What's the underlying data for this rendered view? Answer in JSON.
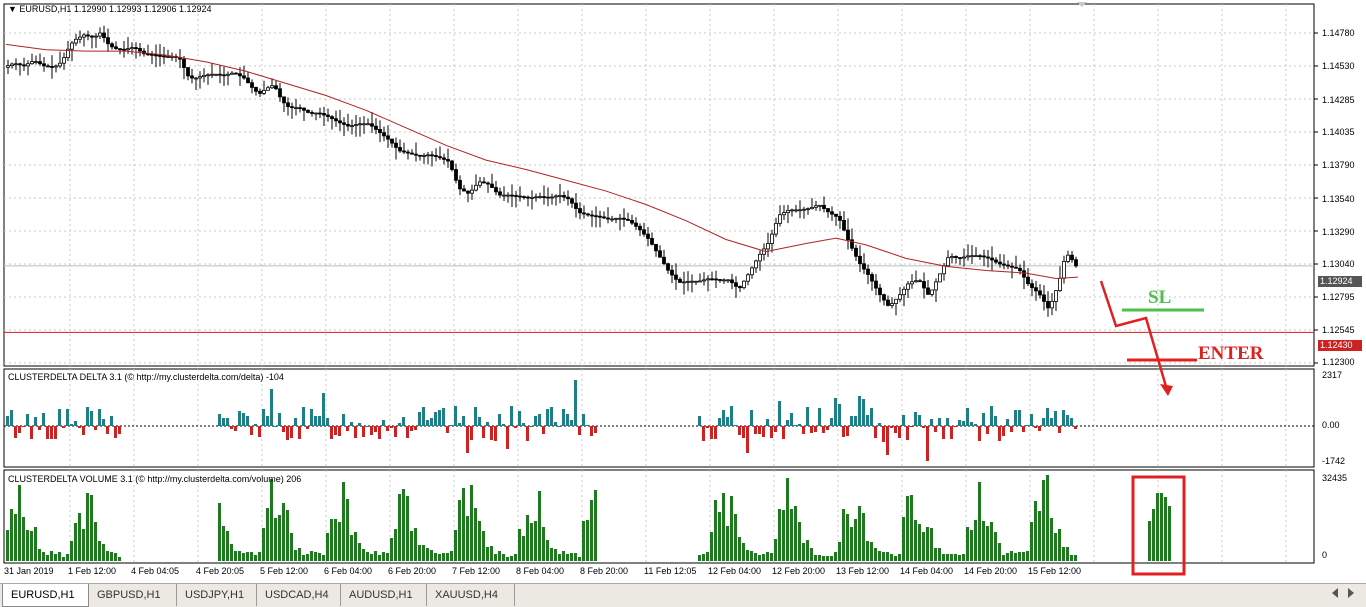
{
  "main_chart": {
    "title": "EURUSD,H1  1.12990 1.12993 1.12906 1.12924",
    "price_axis": [
      "1.14780",
      "1.14530",
      "1.14285",
      "1.14035",
      "1.13790",
      "1.13540",
      "1.13290",
      "1.13040",
      "1.12795",
      "1.12545",
      "1.12300"
    ],
    "current_price": "1.12924",
    "line_price": "1.12430",
    "price_range": [
      1.1218,
      1.1487
    ],
    "close_path_points": [
      [
        0,
        1.144
      ],
      [
        10,
        1.1443
      ],
      [
        20,
        1.1441
      ],
      [
        30,
        1.1445
      ],
      [
        40,
        1.1441
      ],
      [
        50,
        1.144
      ],
      [
        58,
        1.1444
      ],
      [
        65,
        1.1455
      ],
      [
        70,
        1.146
      ],
      [
        80,
        1.1464
      ],
      [
        90,
        1.1462
      ],
      [
        97,
        1.1466
      ],
      [
        103,
        1.1458
      ],
      [
        110,
        1.1454
      ],
      [
        120,
        1.1453
      ],
      [
        130,
        1.1455
      ],
      [
        140,
        1.145
      ],
      [
        150,
        1.1449
      ],
      [
        160,
        1.1448
      ],
      [
        170,
        1.1448
      ],
      [
        176,
        1.1446
      ],
      [
        185,
        1.1432
      ],
      [
        192,
        1.1432
      ],
      [
        200,
        1.1434
      ],
      [
        210,
        1.1435
      ],
      [
        220,
        1.1434
      ],
      [
        230,
        1.1436
      ],
      [
        240,
        1.1432
      ],
      [
        248,
        1.1425
      ],
      [
        255,
        1.142
      ],
      [
        262,
        1.1424
      ],
      [
        270,
        1.1427
      ],
      [
        278,
        1.1415
      ],
      [
        285,
        1.141
      ],
      [
        295,
        1.141
      ],
      [
        305,
        1.1406
      ],
      [
        315,
        1.1406
      ],
      [
        325,
        1.1403
      ],
      [
        335,
        1.1399
      ],
      [
        345,
        1.1396
      ],
      [
        355,
        1.1398
      ],
      [
        365,
        1.1398
      ],
      [
        375,
        1.1392
      ],
      [
        385,
        1.1386
      ],
      [
        395,
        1.1378
      ],
      [
        405,
        1.1376
      ],
      [
        415,
        1.1374
      ],
      [
        425,
        1.1375
      ],
      [
        435,
        1.1373
      ],
      [
        445,
        1.137
      ],
      [
        455,
        1.135
      ],
      [
        465,
        1.1346
      ],
      [
        475,
        1.1355
      ],
      [
        485,
        1.1353
      ],
      [
        495,
        1.1345
      ],
      [
        505,
        1.1345
      ],
      [
        515,
        1.1344
      ],
      [
        525,
        1.1343
      ],
      [
        535,
        1.1344
      ],
      [
        545,
        1.1343
      ],
      [
        555,
        1.1345
      ],
      [
        565,
        1.1342
      ],
      [
        575,
        1.1332
      ],
      [
        585,
        1.133
      ],
      [
        595,
        1.1329
      ],
      [
        605,
        1.1327
      ],
      [
        615,
        1.1328
      ],
      [
        625,
        1.1326
      ],
      [
        635,
        1.132
      ],
      [
        645,
        1.1312
      ],
      [
        655,
        1.13
      ],
      [
        665,
        1.1288
      ],
      [
        675,
        1.128
      ],
      [
        685,
        1.1281
      ],
      [
        695,
        1.1281
      ],
      [
        705,
        1.1283
      ],
      [
        715,
        1.1282
      ],
      [
        725,
        1.1282
      ],
      [
        735,
        1.1275
      ],
      [
        745,
        1.1287
      ],
      [
        755,
        1.13
      ],
      [
        765,
        1.131
      ],
      [
        775,
        1.133
      ],
      [
        785,
        1.1334
      ],
      [
        795,
        1.1334
      ],
      [
        805,
        1.1335
      ],
      [
        815,
        1.1338
      ],
      [
        825,
        1.1332
      ],
      [
        835,
        1.1328
      ],
      [
        845,
        1.131
      ],
      [
        855,
        1.1295
      ],
      [
        865,
        1.1285
      ],
      [
        875,
        1.1272
      ],
      [
        885,
        1.1262
      ],
      [
        895,
        1.127
      ],
      [
        905,
        1.128
      ],
      [
        915,
        1.1282
      ],
      [
        925,
        1.127
      ],
      [
        935,
        1.1285
      ],
      [
        945,
        1.13
      ],
      [
        955,
        1.1298
      ],
      [
        965,
        1.13
      ],
      [
        975,
        1.13
      ],
      [
        985,
        1.1298
      ],
      [
        995,
        1.1294
      ],
      [
        1005,
        1.1292
      ],
      [
        1015,
        1.129
      ],
      [
        1025,
        1.1278
      ],
      [
        1035,
        1.1272
      ],
      [
        1045,
        1.126
      ],
      [
        1055,
        1.128
      ],
      [
        1062,
        1.1302
      ],
      [
        1068,
        1.1297
      ],
      [
        1072,
        1.12924
      ]
    ],
    "ma_path_points": [
      [
        0,
        1.1457
      ],
      [
        40,
        1.1453
      ],
      [
        80,
        1.1452
      ],
      [
        120,
        1.1452
      ],
      [
        160,
        1.1449
      ],
      [
        200,
        1.1444
      ],
      [
        240,
        1.1437
      ],
      [
        280,
        1.1428
      ],
      [
        320,
        1.1419
      ],
      [
        360,
        1.1408
      ],
      [
        400,
        1.1395
      ],
      [
        440,
        1.1382
      ],
      [
        480,
        1.1371
      ],
      [
        520,
        1.1364
      ],
      [
        560,
        1.1356
      ],
      [
        600,
        1.1348
      ],
      [
        640,
        1.1338
      ],
      [
        680,
        1.1326
      ],
      [
        720,
        1.1312
      ],
      [
        760,
        1.1303
      ],
      [
        800,
        1.1309
      ],
      [
        830,
        1.1313
      ],
      [
        860,
        1.1308
      ],
      [
        900,
        1.1298
      ],
      [
        940,
        1.1292
      ],
      [
        980,
        1.1289
      ],
      [
        1020,
        1.1287
      ],
      [
        1050,
        1.1283
      ],
      [
        1072,
        1.1284
      ]
    ]
  },
  "delta_indicator": {
    "title": "CLUSTERDELTA DELTA 3.1 (© http://my.clusterdelta.com/delta) -104",
    "axis_top": "2317",
    "axis_zero": "0.00",
    "axis_bottom": "-1742"
  },
  "volume_indicator": {
    "title": "CLUSTERDELTA VOLUME 3.1 (© http://my.clusterdelta.com/volume) 206",
    "axis_top": "32435",
    "axis_zero": "0"
  },
  "time_axis": [
    "31 Jan 2019",
    "1 Feb 12:00",
    "4 Feb 04:05",
    "4 Feb 20:05",
    "5 Feb 12:00",
    "6 Feb 04:00",
    "6 Feb 20:00",
    "7 Feb 12:00",
    "8 Feb 04:00",
    "8 Feb 20:00",
    "11 Feb 12:05",
    "12 Feb 04:00",
    "12 Feb 20:00",
    "13 Feb 12:00",
    "14 Feb 04:00",
    "14 Feb 20:00",
    "15 Feb 12:00"
  ],
  "annotations": {
    "sl_label": "SL",
    "enter_label": "ENTER"
  },
  "colors": {
    "candle": "#000000",
    "ma": "#b22222",
    "delta_positive": "#1e7f86",
    "delta_negative": "#cc2222",
    "volume": "#1f7a1f",
    "current_price_tag": "#555555",
    "line_price_tag": "#cc2222",
    "sl": "#4cbf4c",
    "enter": "#e02020",
    "grid": "#c8c8c8"
  },
  "tabs": [
    {
      "label": "EURUSD,H1",
      "active": true
    },
    {
      "label": "GBPUSD,H1",
      "active": false
    },
    {
      "label": "USDJPY,H1",
      "active": false
    },
    {
      "label": "USDCAD,H4",
      "active": false
    },
    {
      "label": "AUDUSD,H1",
      "active": false
    },
    {
      "label": "XAUUSD,H4",
      "active": false
    }
  ]
}
